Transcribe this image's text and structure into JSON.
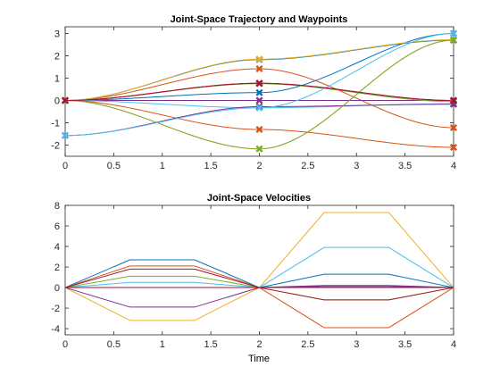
{
  "figure": {
    "background": "#ffffff"
  },
  "colors": [
    "#0072BD",
    "#D95319",
    "#EDB120",
    "#7E2F8E",
    "#77AC30",
    "#4DBEEE",
    "#A2142F"
  ],
  "chart_data": [
    {
      "type": "line",
      "title": "Joint-Space Trajectory and Waypoints",
      "xlabel": "",
      "ylabel": "",
      "xlim": [
        0,
        4
      ],
      "ylim": [
        -2.5,
        3.3
      ],
      "xticks": [
        0,
        0.5,
        1,
        1.5,
        2,
        2.5,
        3,
        3.5,
        4
      ],
      "xtick_labels": [
        "0",
        "0.5",
        "1",
        "1.5",
        "2",
        "2.5",
        "3",
        "3.5",
        "4"
      ],
      "yticks": [
        -2,
        -1,
        0,
        1,
        2,
        3
      ],
      "ytick_labels": [
        "-2",
        "-1",
        "0",
        "1",
        "2",
        "3"
      ],
      "grid": false,
      "legend": "none",
      "waypoint_times": [
        0,
        2,
        4
      ],
      "marker": "x",
      "series": [
        {
          "color": "#0072BD",
          "waypoints": [
            0,
            0.35,
            3.0
          ]
        },
        {
          "color": "#D95319",
          "waypoints": [
            0,
            1.42,
            -1.22
          ]
        },
        {
          "color": "#EDB120",
          "waypoints": [
            0,
            -2.17,
            2.7
          ]
        },
        {
          "color": "#7E2F8E",
          "waypoints": [
            0,
            0.0,
            0.0
          ]
        },
        {
          "color": "#77AC30",
          "waypoints": [
            0,
            0.75,
            -0.05
          ]
        },
        {
          "color": "#4DBEEE",
          "waypoints": [
            0,
            -0.33,
            -0.15
          ]
        },
        {
          "color": "#A2142F",
          "waypoints": [
            0,
            0.77,
            0.0
          ]
        },
        {
          "color": "#0072BD",
          "waypoints": [
            0,
            1.83,
            2.7
          ]
        },
        {
          "color": "#D95319",
          "waypoints": [
            0,
            -1.3,
            -2.1
          ]
        },
        {
          "color": "#EDB120",
          "waypoints": [
            0,
            1.85,
            2.72
          ]
        },
        {
          "color": "#7E2F8E",
          "waypoints": [
            -1.57,
            -0.28,
            -0.17
          ]
        },
        {
          "color": "#77AC30",
          "waypoints": [
            0,
            -2.17,
            2.7
          ]
        },
        {
          "color": "#4DBEEE",
          "waypoints": [
            -1.57,
            -0.33,
            3.0
          ]
        },
        {
          "color": "#A2142F",
          "waypoints": [
            0,
            0.77,
            0.0
          ]
        }
      ]
    },
    {
      "type": "line",
      "title": "Joint-Space Velocities",
      "xlabel": "Time",
      "ylabel": "",
      "xlim": [
        0,
        4
      ],
      "ylim": [
        -4.6,
        8
      ],
      "xticks": [
        0,
        0.5,
        1,
        1.5,
        2,
        2.5,
        3,
        3.5,
        4
      ],
      "xtick_labels": [
        "0",
        "0.5",
        "1",
        "1.5",
        "2",
        "2.5",
        "3",
        "3.5",
        "4"
      ],
      "yticks": [
        -4,
        -2,
        0,
        2,
        4,
        6,
        8
      ],
      "ytick_labels": [
        "-4",
        "-2",
        "0",
        "2",
        "4",
        "6",
        "8"
      ],
      "grid": false,
      "legend": "none",
      "profile_times": [
        0,
        0.667,
        1.333,
        2,
        2.667,
        3.333,
        4
      ],
      "series": [
        {
          "color": "#0072BD",
          "plateaus": [
            2.7,
            1.3
          ]
        },
        {
          "color": "#D95319",
          "plateaus": [
            2.1,
            -3.9
          ]
        },
        {
          "color": "#EDB120",
          "plateaus": [
            -3.2,
            7.3
          ]
        },
        {
          "color": "#7E2F8E",
          "plateaus": [
            0.0,
            0.2
          ]
        },
        {
          "color": "#77AC30",
          "plateaus": [
            1.1,
            -1.2
          ]
        },
        {
          "color": "#4DBEEE",
          "plateaus": [
            0.5,
            3.9
          ]
        },
        {
          "color": "#A2142F",
          "plateaus": [
            1.8,
            -1.2
          ]
        },
        {
          "color": "#7E2F8E",
          "plateaus": [
            -1.9,
            0.1
          ]
        },
        {
          "color": "#A2142F",
          "plateaus": [
            0.0,
            0.0
          ]
        }
      ]
    }
  ]
}
